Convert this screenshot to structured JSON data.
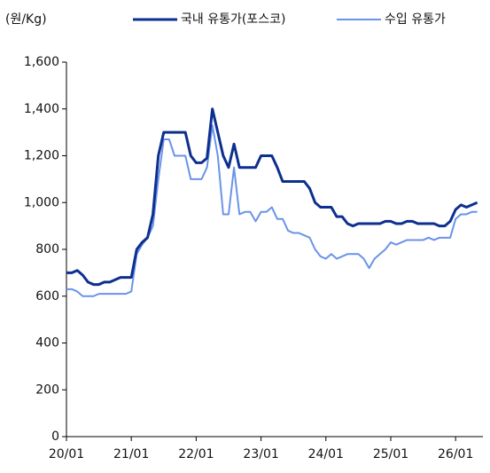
{
  "chart_data": {
    "type": "line",
    "y_unit": "(원/Kg)",
    "x": [
      "20/01",
      "20/02",
      "20/03",
      "20/04",
      "20/05",
      "20/06",
      "20/07",
      "20/08",
      "20/09",
      "20/10",
      "20/11",
      "20/12",
      "21/01",
      "21/02",
      "21/03",
      "21/04",
      "21/05",
      "21/06",
      "21/07",
      "21/08",
      "21/09",
      "21/10",
      "21/11",
      "21/12",
      "22/01",
      "22/02",
      "22/03",
      "22/04",
      "22/05",
      "22/06",
      "22/07",
      "22/08",
      "22/09",
      "22/10",
      "22/11",
      "22/12",
      "23/01",
      "23/02",
      "23/03",
      "23/04",
      "23/05",
      "23/06",
      "23/07",
      "23/08",
      "23/09",
      "23/10",
      "23/11",
      "23/12",
      "24/01",
      "24/02",
      "24/03",
      "24/04",
      "24/05",
      "24/06",
      "24/07",
      "24/08",
      "24/09",
      "24/10",
      "24/11",
      "24/12",
      "25/01",
      "25/02",
      "25/03",
      "25/04",
      "25/05",
      "25/06",
      "25/07",
      "25/08",
      "25/09",
      "25/10",
      "25/11",
      "25/12",
      "26/01",
      "26/02",
      "26/03",
      "26/04",
      "26/05"
    ],
    "series": [
      {
        "name": "국내 유통가(포스코)",
        "color": "#0d2f8f",
        "values": [
          700,
          700,
          710,
          690,
          660,
          650,
          650,
          660,
          660,
          670,
          680,
          680,
          680,
          800,
          830,
          850,
          950,
          1200,
          1300,
          1300,
          1300,
          1300,
          1300,
          1200,
          1170,
          1170,
          1190,
          1400,
          1300,
          1200,
          1150,
          1250,
          1150,
          1150,
          1150,
          1150,
          1200,
          1200,
          1200,
          1150,
          1090,
          1090,
          1090,
          1090,
          1090,
          1060,
          1000,
          980,
          980,
          980,
          940,
          940,
          910,
          900,
          910,
          910,
          910,
          910,
          910,
          920,
          920,
          910,
          910,
          920,
          920,
          910,
          910,
          910,
          910,
          900,
          900,
          920,
          970,
          990,
          980,
          990,
          1000
        ]
      },
      {
        "name": "수입 유통가",
        "color": "#6b93e8",
        "values": [
          630,
          630,
          620,
          600,
          600,
          600,
          610,
          610,
          610,
          610,
          610,
          610,
          620,
          780,
          820,
          850,
          900,
          1100,
          1270,
          1270,
          1200,
          1200,
          1200,
          1100,
          1100,
          1100,
          1150,
          1330,
          1200,
          950,
          950,
          1150,
          950,
          960,
          960,
          920,
          960,
          960,
          980,
          930,
          930,
          880,
          870,
          870,
          860,
          850,
          800,
          770,
          760,
          780,
          760,
          770,
          780,
          780,
          780,
          760,
          720,
          760,
          780,
          800,
          830,
          820,
          830,
          840,
          840,
          840,
          840,
          850,
          840,
          850,
          850,
          850,
          930,
          950,
          950,
          960,
          960
        ]
      }
    ],
    "ylim": [
      0,
      1600
    ],
    "yticks": [
      0,
      200,
      400,
      600,
      800,
      {
        "value": 1000,
        "label": "1,000"
      },
      {
        "value": 1200,
        "label": "1,200"
      },
      {
        "value": 1400,
        "label": "1,400"
      },
      {
        "value": 1600,
        "label": "1,600"
      }
    ],
    "xticks": [
      "20/01",
      "21/01",
      "22/01",
      "23/01",
      "24/01",
      "25/01",
      "26/01"
    ],
    "grid": false
  }
}
